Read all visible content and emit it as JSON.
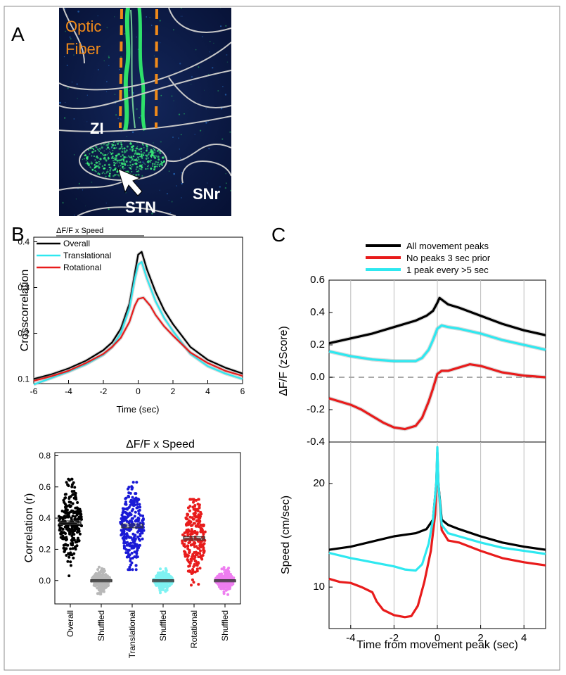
{
  "panel_a": {
    "letter": "A",
    "fiber_label_1": "Optic",
    "fiber_label_2": "Fiber",
    "zi_label": "ZI",
    "stn_label": "STN",
    "snr_label": "SNr",
    "colors": {
      "bg": "#0b1a3d",
      "fiber": "#2ee06a",
      "outline": "#c8c8c8",
      "dash": "#f08a1a"
    }
  },
  "chart_data": [
    {
      "id": "B-top",
      "panel": "B",
      "type": "line",
      "legend_title": "ΔF/F  x   Speed",
      "xlabel": "Time (sec)",
      "ylabel": "Crosscorrelation",
      "xlim": [
        -6,
        6
      ],
      "ylim": [
        0.09,
        0.41
      ],
      "xticks": [
        -6,
        -4,
        -2,
        0,
        2,
        4,
        6
      ],
      "yticks": [
        0.1,
        0.2,
        0.3,
        0.4
      ],
      "legend": "top-left",
      "series": [
        {
          "name": "Overall",
          "color": "#000000",
          "x": [
            -6,
            -5,
            -4,
            -3,
            -2,
            -1.5,
            -1,
            -0.5,
            -0.2,
            0,
            0.2,
            0.5,
            1,
            1.5,
            2,
            3,
            4,
            5,
            6
          ],
          "y": [
            0.1,
            0.11,
            0.123,
            0.14,
            0.163,
            0.18,
            0.21,
            0.265,
            0.33,
            0.372,
            0.378,
            0.34,
            0.29,
            0.25,
            0.22,
            0.17,
            0.142,
            0.125,
            0.112
          ]
        },
        {
          "name": "Translational",
          "color": "#2ee8f0",
          "x": [
            -6,
            -5,
            -4,
            -3,
            -2,
            -1.5,
            -1,
            -0.5,
            -0.2,
            0,
            0.2,
            0.5,
            1,
            1.5,
            2,
            3,
            4,
            5,
            6
          ],
          "y": [
            0.088,
            0.102,
            0.116,
            0.132,
            0.153,
            0.17,
            0.2,
            0.255,
            0.318,
            0.35,
            0.356,
            0.32,
            0.27,
            0.233,
            0.205,
            0.155,
            0.128,
            0.112,
            0.1
          ]
        },
        {
          "name": "Rotational",
          "color": "#e81b1b",
          "x": [
            -6,
            -5,
            -4,
            -3,
            -2,
            -1.5,
            -1,
            -0.5,
            -0.2,
            0,
            0.3,
            0.7,
            1,
            1.5,
            2,
            3,
            4,
            5,
            6
          ],
          "y": [
            0.096,
            0.106,
            0.118,
            0.135,
            0.155,
            0.17,
            0.19,
            0.225,
            0.26,
            0.275,
            0.278,
            0.26,
            0.24,
            0.215,
            0.195,
            0.158,
            0.135,
            0.118,
            0.107
          ]
        }
      ]
    },
    {
      "id": "B-bottom",
      "panel": "B",
      "type": "scatter",
      "title": "ΔF/F  x  Speed",
      "ylabel": "Correlation (r)",
      "ylim": [
        -0.15,
        0.82
      ],
      "yticks": [
        0.0,
        0.2,
        0.4,
        0.6,
        0.8
      ],
      "categories": [
        "Overall",
        "Shuffled",
        "Translational",
        "Shuffled",
        "Rotational",
        "Shuffled"
      ],
      "groups": [
        {
          "category": "Overall",
          "color": "#000000",
          "mean": 0.37,
          "sem": 0.012,
          "min": 0.03,
          "max": 0.65
        },
        {
          "category": "Shuffled",
          "color": "#b8b8b8",
          "mean": 0.0,
          "sem": 0.005,
          "min": -0.1,
          "max": 0.23
        },
        {
          "category": "Translational",
          "color": "#1a1ad6",
          "mean": 0.35,
          "sem": 0.012,
          "min": 0.07,
          "max": 0.63
        },
        {
          "category": "Shuffled",
          "color": "#7ef2f2",
          "mean": 0.0,
          "sem": 0.005,
          "min": -0.09,
          "max": 0.14
        },
        {
          "category": "Rotational",
          "color": "#e81b1b",
          "mean": 0.27,
          "sem": 0.01,
          "min": -0.03,
          "max": 0.52
        },
        {
          "category": "Shuffled",
          "color": "#ee7ef0",
          "mean": 0.0,
          "sem": 0.005,
          "min": -0.09,
          "max": 0.12
        }
      ]
    },
    {
      "id": "C-top",
      "panel": "C",
      "type": "line",
      "ylabel": "ΔF/F (zScore)",
      "xlim": [
        -5,
        5
      ],
      "ylim": [
        -0.4,
        0.6
      ],
      "yticks": [
        -0.4,
        -0.2,
        0.0,
        0.2,
        0.4,
        0.6
      ],
      "vgrid": [
        -4,
        -2,
        0,
        2,
        4
      ],
      "zero_line": 0,
      "legend": "top-center",
      "series": [
        {
          "name": "All movement peaks",
          "color": "#000000",
          "x": [
            -5,
            -4,
            -3,
            -2,
            -1,
            -0.5,
            -0.2,
            0,
            0.1,
            0.2,
            0.5,
            1,
            2,
            3,
            4,
            5
          ],
          "y": [
            0.21,
            0.24,
            0.27,
            0.31,
            0.35,
            0.38,
            0.41,
            0.46,
            0.49,
            0.48,
            0.45,
            0.43,
            0.38,
            0.33,
            0.29,
            0.26
          ]
        },
        {
          "name": "No peaks 3 sec prior",
          "color": "#e81b1b",
          "x": [
            -5,
            -4.5,
            -4,
            -3.5,
            -3,
            -2.5,
            -2,
            -1.5,
            -1,
            -0.7,
            -0.4,
            -0.2,
            0,
            0.2,
            0.5,
            1,
            1.5,
            2,
            3,
            4,
            5
          ],
          "y": [
            -0.13,
            -0.15,
            -0.17,
            -0.2,
            -0.24,
            -0.28,
            -0.31,
            -0.32,
            -0.3,
            -0.25,
            -0.15,
            -0.07,
            0.02,
            0.04,
            0.04,
            0.06,
            0.08,
            0.07,
            0.03,
            0.01,
            0.0
          ]
        },
        {
          "name": "1 peak every >5 sec",
          "color": "#2ee8f0",
          "x": [
            -5,
            -4,
            -3,
            -2,
            -1,
            -0.7,
            -0.4,
            -0.2,
            0,
            0.2,
            0.5,
            1,
            2,
            3,
            4,
            5
          ],
          "y": [
            0.16,
            0.13,
            0.11,
            0.1,
            0.1,
            0.12,
            0.17,
            0.23,
            0.3,
            0.32,
            0.31,
            0.3,
            0.27,
            0.23,
            0.2,
            0.17
          ]
        }
      ]
    },
    {
      "id": "C-bottom",
      "panel": "C",
      "type": "line",
      "xlabel": "Time from movement peak (sec)",
      "ylabel": "Speed (cm/sec)",
      "xlim": [
        -5,
        5
      ],
      "ylim": [
        6,
        24
      ],
      "xticks": [
        -4,
        -2,
        0,
        2,
        4
      ],
      "yticks": [
        10,
        20
      ],
      "vgrid": [
        -4,
        -2,
        0,
        2,
        4
      ],
      "series": [
        {
          "name": "All movement peaks",
          "color": "#000000",
          "x": [
            -5,
            -4,
            -3,
            -2,
            -1,
            -0.5,
            -0.2,
            -0.05,
            0,
            0.05,
            0.2,
            0.5,
            1,
            2,
            3,
            4,
            5
          ],
          "y": [
            13.6,
            13.9,
            14.4,
            14.9,
            15.2,
            15.6,
            16.5,
            20,
            23,
            20,
            16.5,
            16,
            15.6,
            14.9,
            14.3,
            13.9,
            13.6
          ]
        },
        {
          "name": "No peaks 3 sec prior",
          "color": "#e81b1b",
          "x": [
            -5,
            -4.5,
            -4,
            -3.5,
            -3,
            -2.8,
            -2.5,
            -2,
            -1.5,
            -1.2,
            -0.9,
            -0.6,
            -0.3,
            -0.1,
            0,
            0.05,
            0.2,
            0.5,
            1,
            2,
            3,
            4,
            5
          ],
          "y": [
            10.8,
            10.5,
            10.4,
            10,
            9.5,
            8.6,
            7.8,
            7.3,
            7.1,
            7.2,
            8.2,
            10.5,
            13.5,
            17,
            22.5,
            20,
            15.5,
            14.5,
            14.3,
            13.5,
            12.8,
            12.4,
            12.1
          ]
        },
        {
          "name": "1 peak every >5 sec",
          "color": "#2ee8f0",
          "x": [
            -5,
            -4,
            -3,
            -2,
            -1.5,
            -1,
            -0.7,
            -0.4,
            -0.2,
            -0.05,
            0,
            0.05,
            0.2,
            0.5,
            1,
            2,
            3,
            4,
            5
          ],
          "y": [
            13.3,
            12.8,
            12.4,
            12,
            11.7,
            11.6,
            12.2,
            14.2,
            16.5,
            20,
            23.5,
            20,
            16,
            15.2,
            14.9,
            14.3,
            13.8,
            13.5,
            13.2
          ]
        }
      ]
    }
  ],
  "panel_letters": {
    "b": "B",
    "c": "C"
  }
}
